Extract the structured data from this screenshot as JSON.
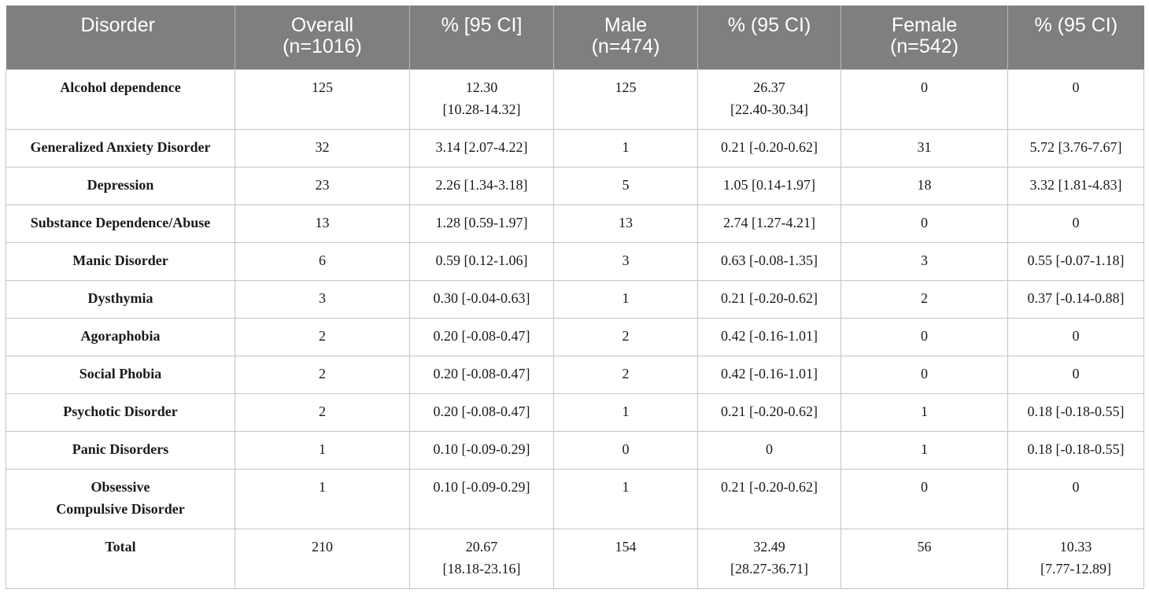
{
  "table": {
    "columns": [
      {
        "lines": [
          "Disorder"
        ]
      },
      {
        "lines": [
          "Overall",
          "(n=1016)"
        ]
      },
      {
        "lines": [
          "% [95 CI]"
        ]
      },
      {
        "lines": [
          "Male",
          "(n=474)"
        ]
      },
      {
        "lines": [
          "% (95 CI)"
        ]
      },
      {
        "lines": [
          "Female",
          "(n=542)"
        ]
      },
      {
        "lines": [
          "% (95 CI)"
        ]
      }
    ],
    "rows": [
      {
        "cells": [
          [
            "Alcohol dependence"
          ],
          [
            "125"
          ],
          [
            "12.30",
            "[10.28-14.32]"
          ],
          [
            "125"
          ],
          [
            "26.37",
            "[22.40-30.34]"
          ],
          [
            "0"
          ],
          [
            "0"
          ]
        ]
      },
      {
        "cells": [
          [
            "Generalized Anxiety Disorder"
          ],
          [
            "32"
          ],
          [
            "3.14 [2.07-4.22]"
          ],
          [
            "1"
          ],
          [
            "0.21 [-0.20-0.62]"
          ],
          [
            "31"
          ],
          [
            "5.72 [3.76-7.67]"
          ]
        ]
      },
      {
        "cells": [
          [
            "Depression"
          ],
          [
            "23"
          ],
          [
            "2.26 [1.34-3.18]"
          ],
          [
            "5"
          ],
          [
            "1.05 [0.14-1.97]"
          ],
          [
            "18"
          ],
          [
            "3.32 [1.81-4.83]"
          ]
        ]
      },
      {
        "cells": [
          [
            "Substance Dependence/Abuse"
          ],
          [
            "13"
          ],
          [
            "1.28 [0.59-1.97]"
          ],
          [
            "13"
          ],
          [
            "2.74 [1.27-4.21]"
          ],
          [
            "0"
          ],
          [
            "0"
          ]
        ]
      },
      {
        "cells": [
          [
            "Manic Disorder"
          ],
          [
            "6"
          ],
          [
            "0.59 [0.12-1.06]"
          ],
          [
            "3"
          ],
          [
            "0.63 [-0.08-1.35]"
          ],
          [
            "3"
          ],
          [
            "0.55 [-0.07-1.18]"
          ]
        ]
      },
      {
        "cells": [
          [
            "Dysthymia"
          ],
          [
            "3"
          ],
          [
            "0.30 [-0.04-0.63]"
          ],
          [
            "1"
          ],
          [
            "0.21 [-0.20-0.62]"
          ],
          [
            "2"
          ],
          [
            "0.37 [-0.14-0.88]"
          ]
        ]
      },
      {
        "cells": [
          [
            "Agoraphobia"
          ],
          [
            "2"
          ],
          [
            "0.20 [-0.08-0.47]"
          ],
          [
            "2"
          ],
          [
            "0.42 [-0.16-1.01]"
          ],
          [
            "0"
          ],
          [
            "0"
          ]
        ]
      },
      {
        "cells": [
          [
            "Social Phobia"
          ],
          [
            "2"
          ],
          [
            "0.20 [-0.08-0.47]"
          ],
          [
            "2"
          ],
          [
            "0.42 [-0.16-1.01]"
          ],
          [
            "0"
          ],
          [
            "0"
          ]
        ]
      },
      {
        "cells": [
          [
            "Psychotic Disorder"
          ],
          [
            "2"
          ],
          [
            "0.20 [-0.08-0.47]"
          ],
          [
            "1"
          ],
          [
            "0.21 [-0.20-0.62]"
          ],
          [
            "1"
          ],
          [
            "0.18 [-0.18-0.55]"
          ]
        ]
      },
      {
        "cells": [
          [
            "Panic Disorders"
          ],
          [
            "1"
          ],
          [
            "0.10 [-0.09-0.29]"
          ],
          [
            "0"
          ],
          [
            "0"
          ],
          [
            "1"
          ],
          [
            "0.18 [-0.18-0.55]"
          ]
        ]
      },
      {
        "cells": [
          [
            "Obsessive",
            "Compulsive Disorder"
          ],
          [
            "1"
          ],
          [
            "0.10 [-0.09-0.29]"
          ],
          [
            "1"
          ],
          [
            "0.21 [-0.20-0.62]"
          ],
          [
            "0"
          ],
          [
            "0"
          ]
        ]
      },
      {
        "cells": [
          [
            "Total"
          ],
          [
            "210"
          ],
          [
            "20.67",
            "[18.18-23.16]"
          ],
          [
            "154"
          ],
          [
            "32.49",
            "[28.27-36.71]"
          ],
          [
            "56"
          ],
          [
            "10.33",
            "[7.77-12.89]"
          ]
        ]
      }
    ]
  },
  "colors": {
    "header_bg": "#7f7f7f",
    "header_text": "#ffffff",
    "grid": "#c4c4c4",
    "body_text": "#1a1a1a"
  }
}
